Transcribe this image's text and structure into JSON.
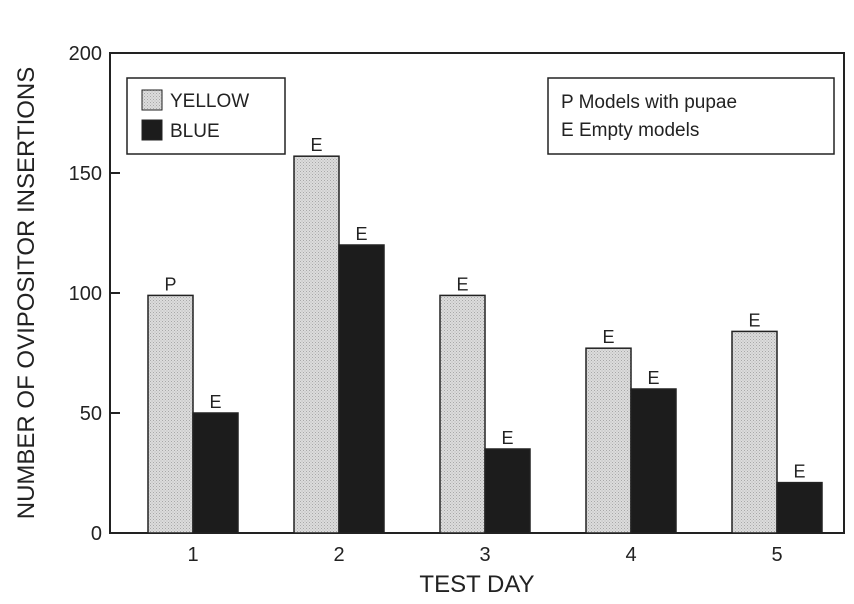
{
  "chart_data": {
    "type": "bar",
    "xlabel": "TEST DAY",
    "ylabel": "NUMBER OF OVIPOSITOR INSERTIONS",
    "categories": [
      "1",
      "2",
      "3",
      "4",
      "5"
    ],
    "ylim": [
      0,
      200
    ],
    "yticks": [
      "0",
      "50",
      "100",
      "150",
      "200"
    ],
    "series": [
      {
        "name": "YELLOW",
        "color": "#d2d2d2",
        "values": [
          99,
          157,
          99,
          77,
          84
        ],
        "labels": [
          "P",
          "E",
          "E",
          "E",
          "E"
        ]
      },
      {
        "name": "BLUE",
        "color": "#1c1c1c",
        "values": [
          50,
          120,
          35,
          60,
          21
        ],
        "labels": [
          "E",
          "E",
          "E",
          "E",
          "E"
        ]
      }
    ],
    "legend_position": "top-left",
    "annotation_lines": [
      "P Models with pupae",
      "E Empty models"
    ],
    "grid": false
  }
}
